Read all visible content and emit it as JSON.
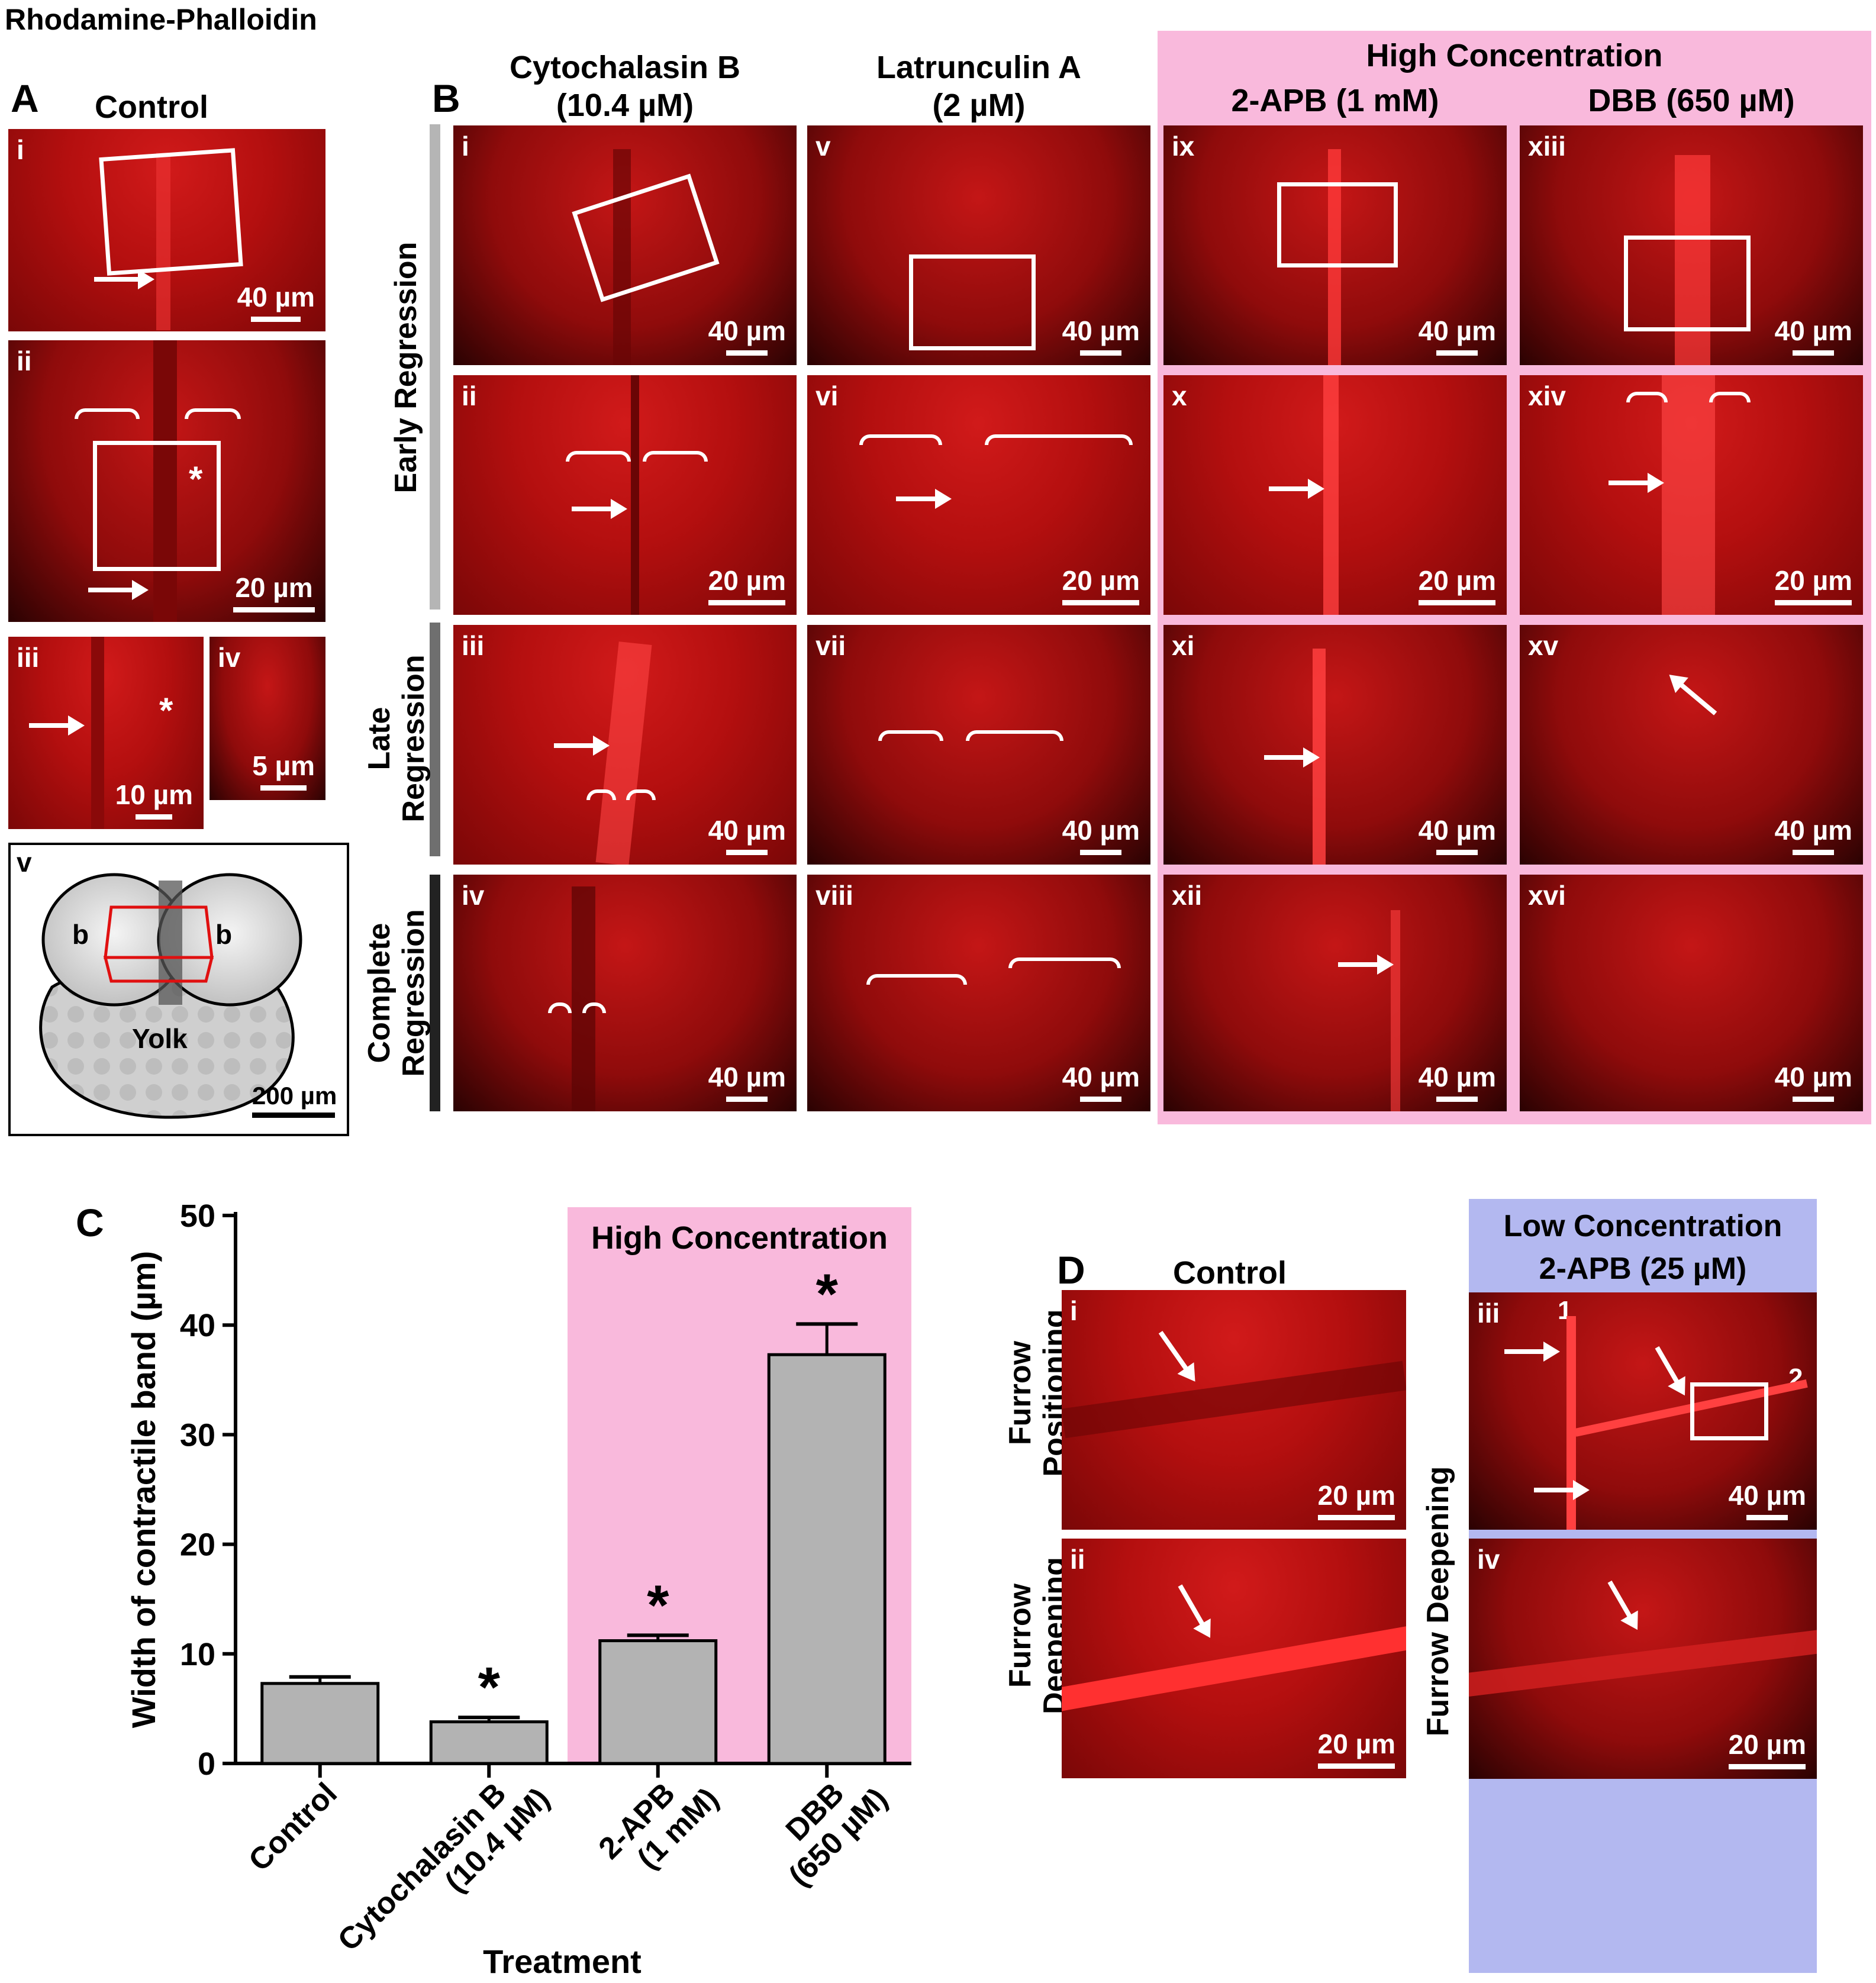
{
  "figure_title": "Rhodamine-Phalloidin",
  "panel_letters": {
    "a": "A",
    "b": "B",
    "c": "C",
    "d": "D"
  },
  "panel_a": {
    "heading": "Control",
    "sub": [
      "i",
      "ii",
      "iii",
      "iv",
      "v"
    ],
    "scales": [
      "40 µm",
      "20 µm",
      "10 µm",
      "5 µm",
      "200 µm"
    ],
    "diagram": {
      "left_label": "b",
      "right_label": "b",
      "yolk_label": "Yolk"
    },
    "asterisk": "*"
  },
  "panel_b": {
    "columns": [
      {
        "line1": "Cytochalasin B",
        "line2": "(10.4 µM)"
      },
      {
        "line1": "Latrunculin A",
        "line2": "(2 µM)"
      },
      {
        "line1": "2-APB (1 mM)",
        "line2": ""
      },
      {
        "line1": "DBB (650 µM)",
        "line2": ""
      }
    ],
    "group_heading": "High Concentration",
    "row_labels": [
      {
        "line1": "Early Regression",
        "line2": ""
      },
      {
        "line1": "Late",
        "line2": "Regression"
      },
      {
        "line1": "Complete",
        "line2": "Regression"
      }
    ],
    "cells": [
      {
        "roman": "i",
        "scale": "40 µm"
      },
      {
        "roman": "v",
        "scale": "40 µm"
      },
      {
        "roman": "ix",
        "scale": "40 µm"
      },
      {
        "roman": "xiii",
        "scale": "40 µm"
      },
      {
        "roman": "ii",
        "scale": "20 µm"
      },
      {
        "roman": "vi",
        "scale": "20 µm"
      },
      {
        "roman": "x",
        "scale": "20 µm"
      },
      {
        "roman": "xiv",
        "scale": "20 µm"
      },
      {
        "roman": "iii",
        "scale": "40 µm"
      },
      {
        "roman": "vii",
        "scale": "40 µm"
      },
      {
        "roman": "xi",
        "scale": "40 µm"
      },
      {
        "roman": "xv",
        "scale": "40 µm"
      },
      {
        "roman": "iv",
        "scale": "40 µm"
      },
      {
        "roman": "viii",
        "scale": "40 µm"
      },
      {
        "roman": "xii",
        "scale": "40 µm"
      },
      {
        "roman": "xvi",
        "scale": "40 µm"
      }
    ]
  },
  "panel_d": {
    "control_heading": "Control",
    "low_heading_line1": "Low Concentration",
    "low_heading_line2": "2-APB (25 µM)",
    "row_labels": [
      {
        "line1": "Furrow",
        "line2": "Positioning"
      },
      {
        "line1": "Furrow",
        "line2": "Deepening"
      }
    ],
    "side_label": "Furrow Deepening",
    "cells": [
      {
        "roman": "i",
        "scale": "20 µm"
      },
      {
        "roman": "ii",
        "scale": "20 µm"
      },
      {
        "roman": "iii",
        "scale": "40 µm"
      },
      {
        "roman": "iv",
        "scale": "20 µm"
      }
    ],
    "furrow_numbers": [
      "1",
      "2"
    ]
  },
  "colors": {
    "high_concentration_bg": "#f9b9dc",
    "low_concentration_bg": "#b3b8f0",
    "bar_fill": "#b3b3b3",
    "fluorescence_red": "#c81414"
  },
  "chart_data": {
    "type": "bar",
    "ylabel": "Width of contractile band (µm)",
    "xlabel": "Treatment",
    "ylim": [
      0,
      50
    ],
    "yticks": [
      0,
      10,
      20,
      30,
      40,
      50
    ],
    "categories": [
      "Control",
      "Cytochalasin B (10.4 µM)",
      "2-APB (1 mM)",
      "DBB (650 µM)"
    ],
    "category_lines": [
      [
        "Control"
      ],
      [
        "Cytochalasin B",
        "(10.4 µM)"
      ],
      [
        "2-APB",
        "(1 mM)"
      ],
      [
        "DBB",
        "(650 µM)"
      ]
    ],
    "values": [
      7.3,
      3.8,
      11.2,
      37.3
    ],
    "errors": [
      0.6,
      0.4,
      0.5,
      2.8
    ],
    "significance": [
      "",
      "*",
      "*",
      "*"
    ],
    "highlight": {
      "label": "High Concentration",
      "categories": [
        "2-APB (1 mM)",
        "DBB (650 µM)"
      ]
    },
    "grid": false
  }
}
